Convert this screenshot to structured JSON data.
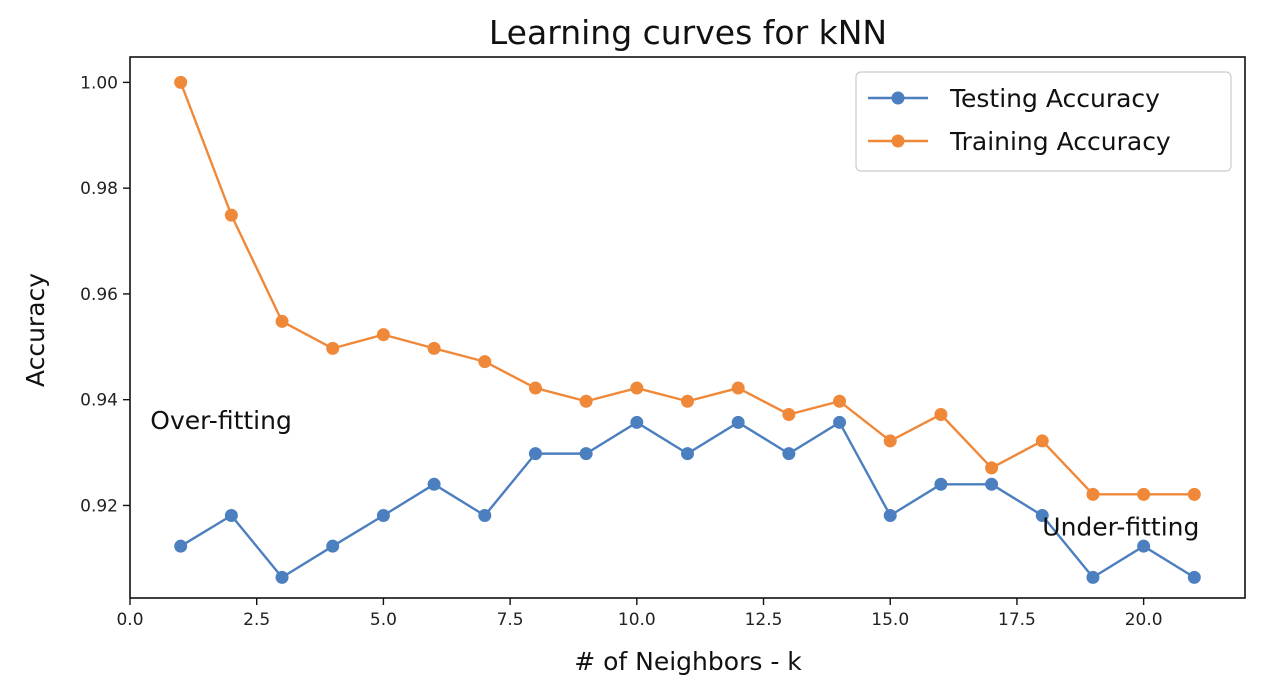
{
  "chart_data": {
    "type": "line",
    "title": "Learning curves for kNN",
    "xlabel": "# of Neighbors - k",
    "ylabel": "Accuracy",
    "xlim": [
      0.0,
      22.0
    ],
    "ylim": [
      0.9025,
      1.0048
    ],
    "xticks": [
      0.0,
      2.5,
      5.0,
      7.5,
      10.0,
      12.5,
      15.0,
      17.5,
      20.0
    ],
    "xtick_labels": [
      "0.0",
      "2.5",
      "5.0",
      "7.5",
      "10.0",
      "12.5",
      "15.0",
      "17.5",
      "20.0"
    ],
    "yticks": [
      0.92,
      0.94,
      0.96,
      0.98,
      1.0
    ],
    "ytick_labels": [
      "0.92",
      "0.94",
      "0.96",
      "0.98",
      "1.00"
    ],
    "grid": false,
    "legend_position": "top-right",
    "x": [
      1,
      2,
      3,
      4,
      5,
      6,
      7,
      8,
      9,
      10,
      11,
      12,
      13,
      14,
      15,
      16,
      17,
      18,
      19,
      20,
      21
    ],
    "series": [
      {
        "name": "Testing Accuracy",
        "color": "#4c7fbf",
        "values": [
          0.9123,
          0.9181,
          0.9064,
          0.9123,
          0.9181,
          0.924,
          0.9181,
          0.9298,
          0.9298,
          0.9357,
          0.9298,
          0.9357,
          0.9298,
          0.9357,
          0.9181,
          0.924,
          0.924,
          0.9181,
          0.9064,
          0.9123,
          0.9064
        ]
      },
      {
        "name": "Training Accuracy",
        "color": "#f0883a",
        "values": [
          1.0,
          0.9749,
          0.9548,
          0.9497,
          0.9523,
          0.9497,
          0.9472,
          0.9422,
          0.9397,
          0.9422,
          0.9397,
          0.9422,
          0.9372,
          0.9397,
          0.9322,
          0.9372,
          0.9271,
          0.9322,
          0.9221,
          0.9221,
          0.9221
        ]
      }
    ],
    "annotations": [
      {
        "text": "Over-fitting",
        "x": 0.4,
        "y": 0.9345
      },
      {
        "text": "Under-fitting",
        "x": 18.0,
        "y": 0.9143
      }
    ]
  }
}
